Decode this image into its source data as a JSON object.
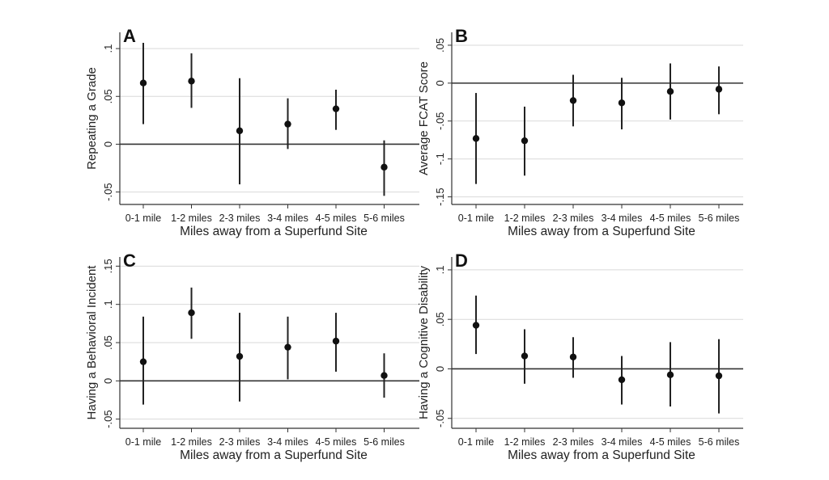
{
  "chart_data": [
    {
      "type": "scatter",
      "panel": "A",
      "xlabel": "Miles away from a Superfund Site",
      "ylabel": "Repeating a Grade",
      "categories": [
        "0-1 mile",
        "1-2 miles",
        "2-3 miles",
        "3-4 miles",
        "4-5 miles",
        "5-6 miles"
      ],
      "values": [
        0.064,
        0.066,
        0.014,
        0.021,
        0.037,
        -0.024
      ],
      "ci_low": [
        0.021,
        0.038,
        -0.042,
        -0.005,
        0.015,
        -0.054
      ],
      "ci_high": [
        0.106,
        0.095,
        0.069,
        0.048,
        0.057,
        0.004
      ],
      "yticks": [
        -0.05,
        0,
        0.05,
        0.1
      ],
      "ytick_labels": [
        "-.05",
        "0",
        ".05",
        ".1"
      ],
      "ylim": [
        -0.063,
        0.117
      ],
      "grid": true,
      "reference_line": 0
    },
    {
      "type": "scatter",
      "panel": "B",
      "xlabel": "Miles away from a Superfund Site",
      "ylabel": "Average FCAT Score",
      "categories": [
        "0-1 mile",
        "1-2 miles",
        "2-3 miles",
        "3-4 miles",
        "4-5 miles",
        "5-6 miles"
      ],
      "values": [
        -0.073,
        -0.076,
        -0.023,
        -0.026,
        -0.011,
        -0.008
      ],
      "ci_low": [
        -0.133,
        -0.122,
        -0.057,
        -0.061,
        -0.048,
        -0.041
      ],
      "ci_high": [
        -0.013,
        -0.031,
        0.011,
        0.007,
        0.026,
        0.022
      ],
      "yticks": [
        -0.15,
        -0.1,
        -0.05,
        0,
        0.05
      ],
      "ytick_labels": [
        "-.15",
        "-.1",
        "-.05",
        "0",
        ".05"
      ],
      "ylim": [
        -0.16,
        0.067
      ],
      "grid": true,
      "reference_line": 0
    },
    {
      "type": "scatter",
      "panel": "C",
      "xlabel": "Miles away from a Superfund Site",
      "ylabel": "Having a Behavioral Incident",
      "categories": [
        "0-1 mile",
        "1-2 miles",
        "2-3 miles",
        "3-4 miles",
        "4-5 miles",
        "5-6 miles"
      ],
      "values": [
        0.025,
        0.089,
        0.032,
        0.044,
        0.052,
        0.007
      ],
      "ci_low": [
        -0.031,
        0.055,
        -0.027,
        0.002,
        0.012,
        -0.022
      ],
      "ci_high": [
        0.084,
        0.122,
        0.089,
        0.084,
        0.089,
        0.036
      ],
      "yticks": [
        -0.05,
        0,
        0.05,
        0.1,
        0.15
      ],
      "ytick_labels": [
        "-.05",
        "0",
        ".05",
        ".1",
        ".15"
      ],
      "ylim": [
        -0.062,
        0.162
      ],
      "grid": true,
      "reference_line": 0
    },
    {
      "type": "scatter",
      "panel": "D",
      "xlabel": "Miles away from a Superfund Site",
      "ylabel": "Having a Cognitive Disability",
      "categories": [
        "0-1 mile",
        "1-2 miles",
        "2-3 miles",
        "3-4 miles",
        "4-5 miles",
        "5-6 miles"
      ],
      "values": [
        0.044,
        0.013,
        0.012,
        -0.011,
        -0.006,
        -0.007
      ],
      "ci_low": [
        0.015,
        -0.015,
        -0.009,
        -0.036,
        -0.038,
        -0.045
      ],
      "ci_high": [
        0.074,
        0.04,
        0.032,
        0.013,
        0.027,
        0.03
      ],
      "yticks": [
        -0.05,
        0,
        0.05,
        0.1
      ],
      "ytick_labels": [
        "-.05",
        "0",
        ".05",
        ".1"
      ],
      "ylim": [
        -0.06,
        0.113
      ],
      "grid": true,
      "reference_line": 0
    }
  ]
}
